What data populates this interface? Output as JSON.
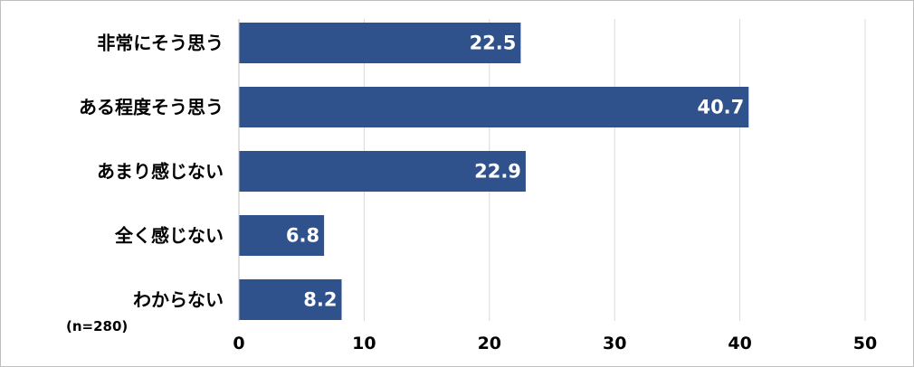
{
  "chart_data": {
    "type": "bar",
    "orientation": "horizontal",
    "categories": [
      "非常にそう思う",
      "ある程度そう思う",
      "あまり感じない",
      "全く感じない",
      "わからない"
    ],
    "values": [
      22.5,
      40.7,
      22.9,
      6.8,
      8.2
    ],
    "value_labels": [
      "22.5",
      "40.7",
      "22.9",
      "6.8",
      "8.2"
    ],
    "x_ticks": [
      "0",
      "10",
      "20",
      "30",
      "40",
      "50"
    ],
    "xlim": [
      0,
      50
    ],
    "grid": "vertical",
    "bar_color": "#30528c",
    "note": "(n=280)"
  }
}
